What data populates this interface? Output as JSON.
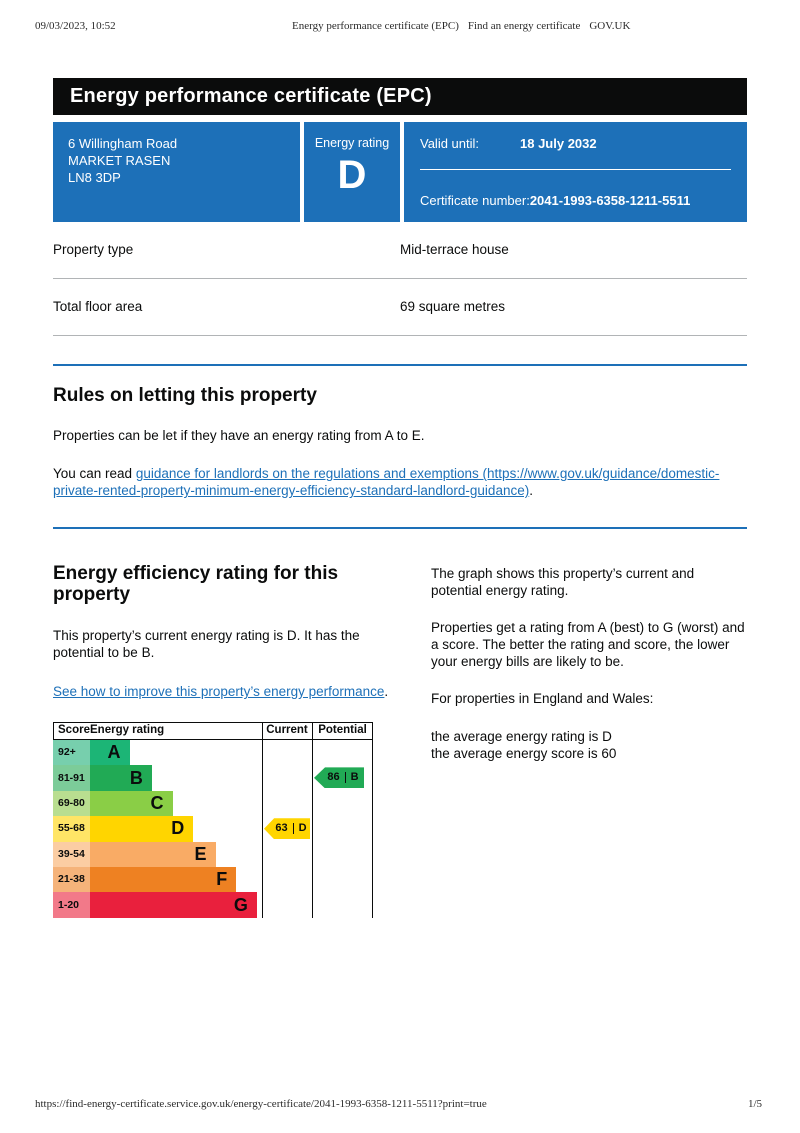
{
  "print_header": {
    "datetime": "09/03/2023, 10:52",
    "doc_title": "Energy performance certificate (EPC)",
    "site_name": "Find an energy certificate",
    "brand": "GOV.UK"
  },
  "title_bar": {
    "title": "Energy performance certificate (EPC)"
  },
  "summary_panel": {
    "address_line1": "6 Willingham Road",
    "address_line2": "MARKET RASEN",
    "address_line3": "LN8 3DP",
    "energy_rating_label": "Energy rating",
    "energy_rating": "D",
    "valid_until_label": "Valid until:",
    "valid_until": "18 July 2032",
    "certificate_number_label": "Certificate number:",
    "certificate_number": "2041-1993-6358-1211-5511"
  },
  "property_facts": [
    {
      "label": "Property type",
      "value": "Mid-terrace house"
    },
    {
      "label": "Total floor area",
      "value": "69 square metres"
    }
  ],
  "rules_section": {
    "heading": "Rules on letting this property",
    "para1": "Properties can be let if they have an energy rating from A to E.",
    "para2_prefix": "You can read ",
    "link_text": "guidance for landlords on the regulations and exemptions (https://www.gov.uk/guidance/domestic-private-rented-property-minimum-energy-efficiency-standard-landlord-guidance)",
    "para2_suffix": "."
  },
  "rating_section": {
    "heading": "Energy efficiency rating for this property",
    "para1": "This property’s current energy rating is D. It has the potential to be B.",
    "link_text": "See how to improve this property’s energy performance",
    "link_suffix": ".",
    "right_para1": "The graph shows this property’s current and potential energy rating.",
    "right_para2": "Properties get a rating from A (best) to G (worst) and a score. The better the rating and score, the lower your energy bills are likely to be.",
    "right_para3": "For properties in England and Wales:",
    "right_line1": "the average energy rating is D",
    "right_line2": "the average energy score is 60"
  },
  "chart_data": {
    "type": "bar",
    "title": "Energy efficiency rating graph",
    "headers": {
      "score": "Score",
      "rating": "Energy rating",
      "current": "Current",
      "potential": "Potential"
    },
    "bands": [
      {
        "score_range": "92+",
        "letter": "A",
        "width_pct": 23,
        "color": "#1cb576",
        "score_bg": "#77cfad"
      },
      {
        "score_range": "81-91",
        "letter": "B",
        "width_pct": 36,
        "color": "#21aa55",
        "score_bg": "#7ccc99"
      },
      {
        "score_range": "69-80",
        "letter": "C",
        "width_pct": 48,
        "color": "#8ace46",
        "score_bg": "#b9de90"
      },
      {
        "score_range": "55-68",
        "letter": "D",
        "width_pct": 60,
        "color": "#ffd500",
        "score_bg": "#ffe566"
      },
      {
        "score_range": "39-54",
        "letter": "E",
        "width_pct": 73,
        "color": "#f9ab65",
        "score_bg": "#fbcda3"
      },
      {
        "score_range": "21-38",
        "letter": "F",
        "width_pct": 85,
        "color": "#ee8122",
        "score_bg": "#f5b37a"
      },
      {
        "score_range": "1-20",
        "letter": "G",
        "width_pct": 97,
        "color": "#e9203d",
        "score_bg": "#f27989"
      }
    ],
    "current": {
      "score": 63,
      "band": "D",
      "row": 3,
      "color": "#ffd500"
    },
    "potential": {
      "score": 86,
      "band": "B",
      "row": 1,
      "color": "#21aa55"
    }
  },
  "print_footer": {
    "url": "https://find-energy-certificate.service.gov.uk/energy-certificate/2041-1993-6358-1211-5511?print=true",
    "page": "1/5"
  }
}
